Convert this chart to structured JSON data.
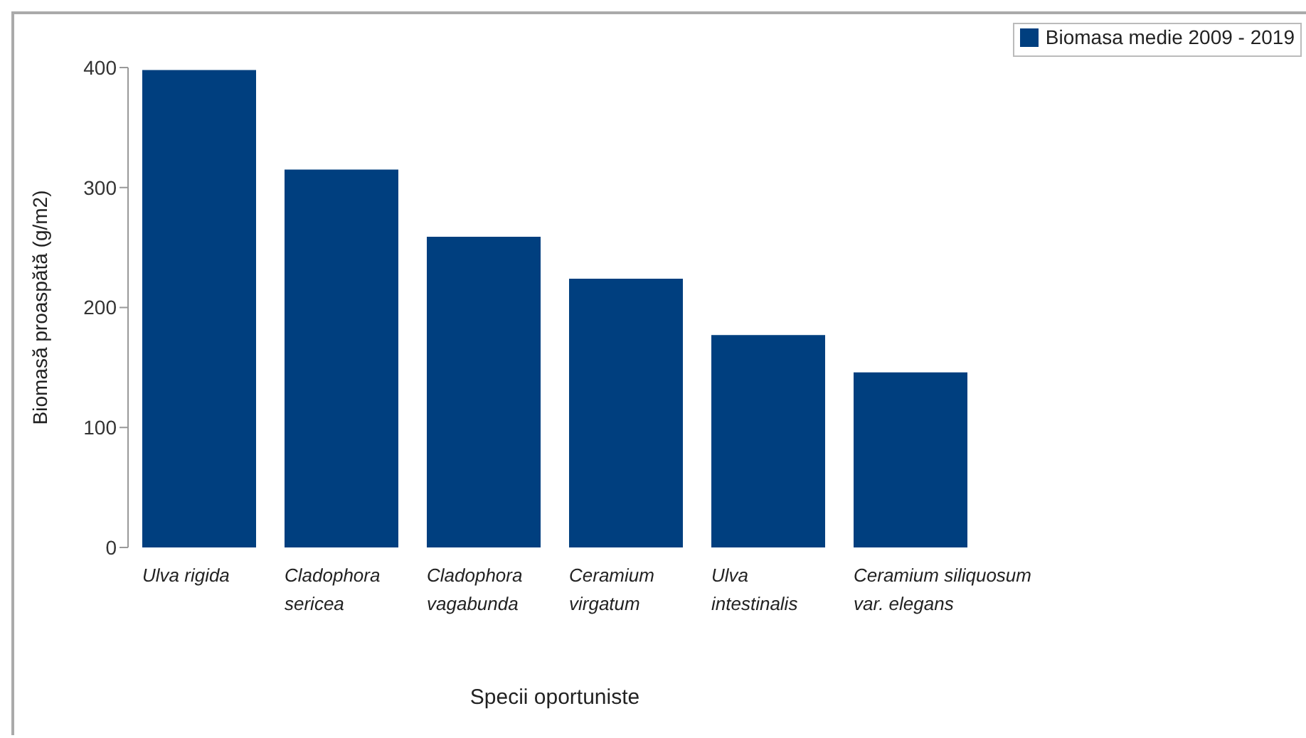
{
  "chart_data": {
    "type": "bar",
    "categories": [
      "Ulva rigida",
      "Cladophora sericea",
      "Cladophora vagabunda",
      "Ceramium virgatum",
      "Ulva intestinalis",
      "Ceramium siliquosum var. elegans"
    ],
    "series": [
      {
        "name": "Biomasa medie 2009 - 2019",
        "color": "#003f7f",
        "values": [
          398,
          315,
          259,
          224,
          177,
          146
        ]
      }
    ],
    "xlabel": "Specii oportuniste",
    "ylabel": "Biomasă proaspătă (g/m2)",
    "ylim": [
      0,
      400
    ],
    "yticks": [
      0,
      100,
      200,
      300,
      400
    ],
    "grid": false,
    "legend": "top right"
  }
}
